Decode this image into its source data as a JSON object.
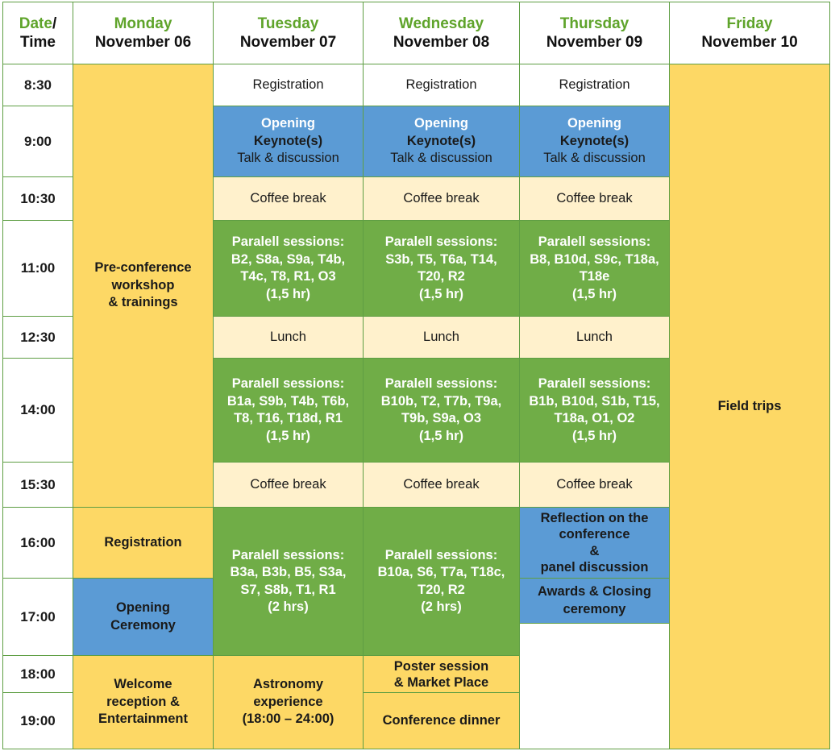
{
  "header": {
    "corner": {
      "date": "Date",
      "slash": "/",
      "time": "Time"
    },
    "days": [
      {
        "name": "Monday",
        "date": "November 06"
      },
      {
        "name": "Tuesday",
        "date": "November 07"
      },
      {
        "name": "Wednesday",
        "date": "November 08"
      },
      {
        "name": "Thursday",
        "date": "November 09"
      },
      {
        "name": "Friday",
        "date": "November 10"
      }
    ]
  },
  "times": [
    "8:30",
    "9:00",
    "10:30",
    "11:00",
    "12:30",
    "14:00",
    "15:30",
    "16:00",
    "17:00",
    "18:00",
    "19:00"
  ],
  "events": {
    "monday": {
      "preconf": [
        "Pre-conference",
        "workshop",
        "& trainings"
      ],
      "registration": "Registration",
      "opening_ceremony": [
        "Opening",
        "Ceremony"
      ],
      "welcome": [
        "Welcome",
        "reception &",
        "Entertainment"
      ]
    },
    "tuesday": {
      "registration": "Registration",
      "opening": {
        "l1": "Opening",
        "l2": "Keynote(s)",
        "l3": "Talk & discussion"
      },
      "coffee1": "Coffee break",
      "sessions1": [
        "Paralell sessions:",
        "B2, S8a, S9a, T4b,",
        "T4c, T8, R1, O3",
        "(1,5 hr)"
      ],
      "lunch": "Lunch",
      "sessions2": [
        "Paralell sessions:",
        "B1a, S9b, T4b, T6b,",
        "T8, T16, T18d, R1",
        "(1,5 hr)"
      ],
      "coffee2": "Coffee break",
      "sessions3": [
        "Paralell sessions:",
        "B3a, B3b, B5, S3a,",
        "S7, S8b, T1, R1",
        "(2 hrs)"
      ],
      "astronomy": [
        "Astronomy",
        "experience",
        "(18:00 – 24:00)"
      ]
    },
    "wednesday": {
      "registration": "Registration",
      "opening": {
        "l1": "Opening",
        "l2": "Keynote(s)",
        "l3": "Talk & discussion"
      },
      "coffee1": "Coffee break",
      "sessions1": [
        "Paralell sessions:",
        "S3b, T5,  T6a, T14,",
        "T20, R2",
        "(1,5 hr)"
      ],
      "lunch": "Lunch",
      "sessions2": [
        "Paralell sessions:",
        "B10b,  T2, T7b, T9a,",
        "T9b, S9a, O3",
        "(1,5 hr)"
      ],
      "coffee2": "Coffee break",
      "sessions3": [
        "Paralell sessions:",
        "B10a,  S6, T7a,  T18c,",
        "T20, R2",
        "(2 hrs)"
      ],
      "poster": [
        "Poster session",
        "& Market Place"
      ],
      "dinner": "Conference dinner"
    },
    "thursday": {
      "registration": "Registration",
      "opening": {
        "l1": "Opening",
        "l2": "Keynote(s)",
        "l3": "Talk & discussion"
      },
      "coffee1": "Coffee break",
      "sessions1": [
        "Paralell sessions:",
        "B8, B10d, S9c, T18a,",
        "T18e",
        "(1,5 hr)"
      ],
      "lunch": "Lunch",
      "sessions2": [
        "Paralell sessions:",
        "B1b, B10d, S1b, T15,",
        "T18a, O1, O2",
        "(1,5 hr)"
      ],
      "coffee2": "Coffee break",
      "reflection": [
        "Reflection on the",
        "conference",
        "&",
        "panel discussion"
      ],
      "awards": [
        "Awards & Closing",
        "ceremony"
      ]
    },
    "friday": {
      "field_trips": "Field trips"
    }
  },
  "colors": {
    "border": "#5e9e43",
    "header_day": "#5fa42b",
    "yellow": "#fdd865",
    "blue": "#5b9bd5",
    "green": "#70ad47",
    "cream": "#fff1cc"
  }
}
